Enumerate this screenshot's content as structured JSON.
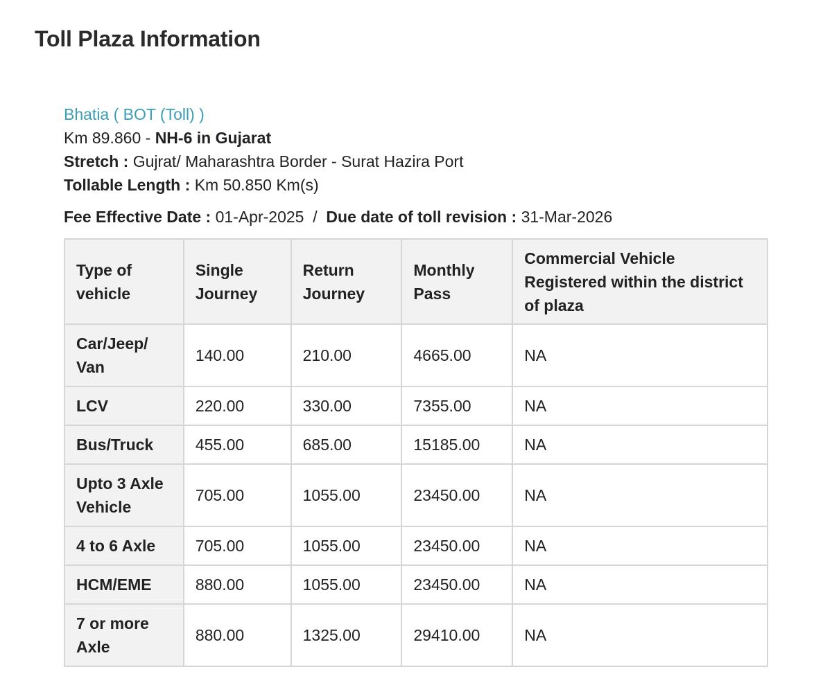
{
  "page": {
    "title": "Toll Plaza Information"
  },
  "plaza": {
    "name": "Bhatia ( BOT (Toll) )",
    "km_prefix": "Km 89.860 - ",
    "highway": "NH-6 in Gujarat",
    "stretch_label": "Stretch :",
    "stretch_value": "Gujrat/ Maharashtra Border - Surat Hazira Port",
    "length_label": "Tollable Length :",
    "length_value": "Km 50.850 Km(s)",
    "fee_date_label": "Fee Effective Date :",
    "fee_date_value": "01-Apr-2025",
    "separator": "/",
    "due_date_label": "Due date of toll revision :",
    "due_date_value": "31-Mar-2026"
  },
  "table": {
    "headers": [
      "Type of vehicle",
      "Single Journey",
      "Return Journey",
      "Monthly Pass",
      "Commercial Vehicle Registered within the district of plaza"
    ],
    "rows": [
      [
        "Car/Jeep/ Van",
        "140.00",
        "210.00",
        "4665.00",
        "NA"
      ],
      [
        "LCV",
        "220.00",
        "330.00",
        "7355.00",
        "NA"
      ],
      [
        "Bus/Truck",
        "455.00",
        "685.00",
        "15185.00",
        "NA"
      ],
      [
        "Upto 3 Axle Vehicle",
        "705.00",
        "1055.00",
        "23450.00",
        "NA"
      ],
      [
        "4 to 6 Axle",
        "705.00",
        "1055.00",
        "23450.00",
        "NA"
      ],
      [
        "HCM/EME",
        "880.00",
        "1055.00",
        "23450.00",
        "NA"
      ],
      [
        "7 or more Axle",
        "880.00",
        "1325.00",
        "29410.00",
        "NA"
      ]
    ]
  },
  "colors": {
    "link": "#3a9fb5",
    "header_bg": "#f2f2f2",
    "border": "#d6d6d6"
  }
}
